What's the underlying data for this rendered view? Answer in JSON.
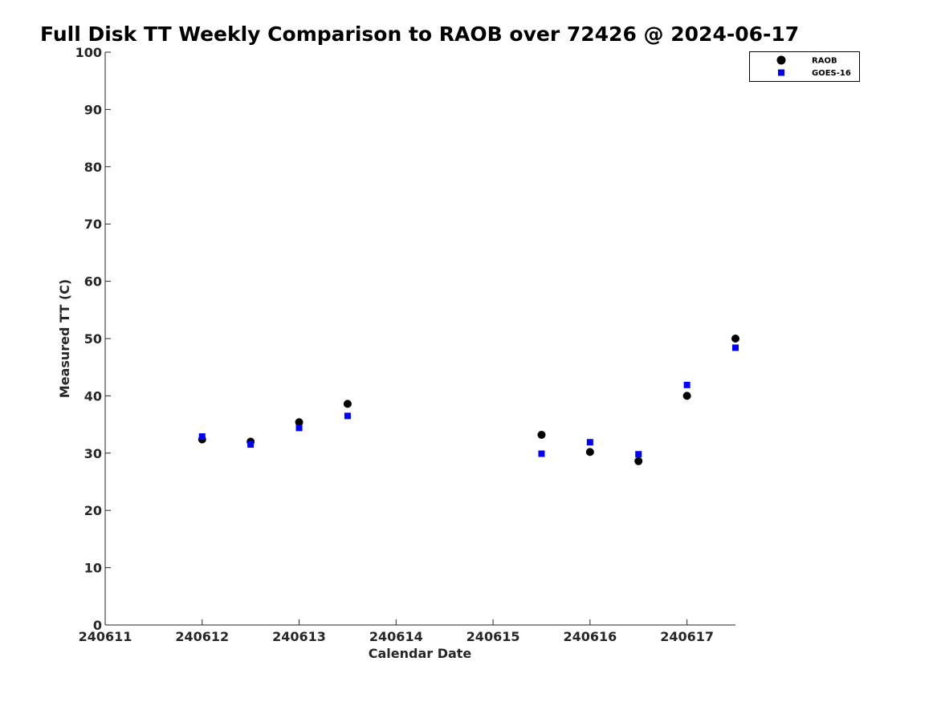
{
  "chart_data": {
    "type": "scatter",
    "title": "Full Disk TT Weekly Comparison to RAOB over 72426 @ 2024-06-17",
    "xlabel": "Calendar Date",
    "ylabel": "Measured TT (C)",
    "xlim": [
      240611,
      240617.5
    ],
    "ylim": [
      0,
      100
    ],
    "x_ticks": [
      240611,
      240612,
      240613,
      240614,
      240615,
      240616,
      240617
    ],
    "x_tick_labels": [
      "240611",
      "240612",
      "240613",
      "240614",
      "240615",
      "240616",
      "240617"
    ],
    "y_ticks": [
      0,
      10,
      20,
      30,
      40,
      50,
      60,
      70,
      80,
      90,
      100
    ],
    "y_tick_labels": [
      "0",
      "10",
      "20",
      "30",
      "40",
      "50",
      "60",
      "70",
      "80",
      "90",
      "100"
    ],
    "grid": false,
    "legend_position": "top-right",
    "series": [
      {
        "name": "RAOB",
        "marker": "circle",
        "color": "#000000",
        "points": [
          {
            "x": 240612.0,
            "y": 32.4
          },
          {
            "x": 240612.5,
            "y": 32.0
          },
          {
            "x": 240613.0,
            "y": 35.4
          },
          {
            "x": 240613.5,
            "y": 38.6
          },
          {
            "x": 240615.5,
            "y": 33.2
          },
          {
            "x": 240616.0,
            "y": 30.2
          },
          {
            "x": 240616.5,
            "y": 28.6
          },
          {
            "x": 240617.0,
            "y": 40.0
          },
          {
            "x": 240617.5,
            "y": 50.0
          }
        ]
      },
      {
        "name": "GOES-16",
        "marker": "square",
        "color": "#0000ff",
        "points": [
          {
            "x": 240612.0,
            "y": 32.9
          },
          {
            "x": 240612.5,
            "y": 31.5
          },
          {
            "x": 240613.0,
            "y": 34.4
          },
          {
            "x": 240613.5,
            "y": 36.5
          },
          {
            "x": 240615.5,
            "y": 29.9
          },
          {
            "x": 240616.0,
            "y": 31.9
          },
          {
            "x": 240616.5,
            "y": 29.8
          },
          {
            "x": 240617.0,
            "y": 41.9
          },
          {
            "x": 240617.5,
            "y": 48.4
          }
        ]
      }
    ]
  }
}
